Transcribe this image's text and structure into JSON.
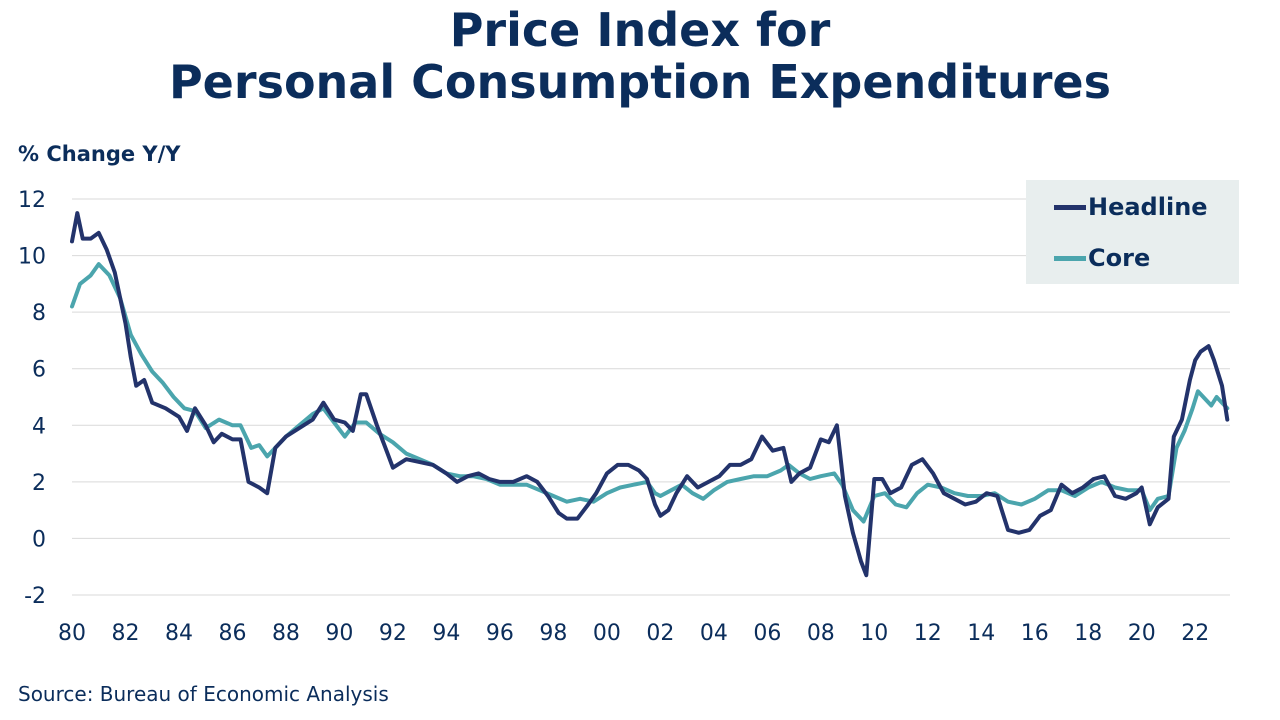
{
  "chart_data": {
    "type": "line",
    "title_line1": "Price Index for",
    "title_line2": "Personal Consumption Expenditures",
    "ylabel": "% Change Y/Y",
    "xlabel": "",
    "source": "Source: Bureau of Economic Analysis",
    "ylim": [
      -2,
      12
    ],
    "yticks": [
      -2,
      0,
      2,
      4,
      6,
      8,
      10,
      12
    ],
    "xlim": [
      1980.0,
      2023.3
    ],
    "xticks": [
      1980,
      1982,
      1984,
      1986,
      1988,
      1990,
      1992,
      1994,
      1996,
      1998,
      2000,
      2002,
      2004,
      2006,
      2008,
      2010,
      2012,
      2014,
      2016,
      2018,
      2020,
      2022
    ],
    "xtick_labels": [
      "80",
      "82",
      "84",
      "86",
      "88",
      "90",
      "92",
      "94",
      "96",
      "98",
      "00",
      "02",
      "04",
      "06",
      "08",
      "10",
      "12",
      "14",
      "16",
      "18",
      "20",
      "22"
    ],
    "grid": "horizontal",
    "legend_position": "top-right",
    "series": [
      {
        "name": "Headline",
        "color": "#23336b",
        "points": [
          [
            1980.0,
            10.5
          ],
          [
            1980.2,
            11.5
          ],
          [
            1980.4,
            10.6
          ],
          [
            1980.7,
            10.6
          ],
          [
            1981.0,
            10.8
          ],
          [
            1981.3,
            10.2
          ],
          [
            1981.6,
            9.4
          ],
          [
            1982.0,
            7.6
          ],
          [
            1982.2,
            6.4
          ],
          [
            1982.4,
            5.4
          ],
          [
            1982.7,
            5.6
          ],
          [
            1983.0,
            4.8
          ],
          [
            1983.5,
            4.6
          ],
          [
            1984.0,
            4.3
          ],
          [
            1984.3,
            3.8
          ],
          [
            1984.6,
            4.6
          ],
          [
            1985.0,
            4.0
          ],
          [
            1985.3,
            3.4
          ],
          [
            1985.6,
            3.7
          ],
          [
            1986.0,
            3.5
          ],
          [
            1986.3,
            3.5
          ],
          [
            1986.6,
            2.0
          ],
          [
            1987.0,
            1.8
          ],
          [
            1987.3,
            1.6
          ],
          [
            1987.6,
            3.2
          ],
          [
            1988.0,
            3.6
          ],
          [
            1988.5,
            3.9
          ],
          [
            1989.0,
            4.2
          ],
          [
            1989.4,
            4.8
          ],
          [
            1989.8,
            4.2
          ],
          [
            1990.2,
            4.1
          ],
          [
            1990.5,
            3.8
          ],
          [
            1990.8,
            5.1
          ],
          [
            1991.0,
            5.1
          ],
          [
            1991.4,
            4.0
          ],
          [
            1991.8,
            3.0
          ],
          [
            1992.0,
            2.5
          ],
          [
            1992.5,
            2.8
          ],
          [
            1993.0,
            2.7
          ],
          [
            1993.5,
            2.6
          ],
          [
            1994.0,
            2.3
          ],
          [
            1994.4,
            2.0
          ],
          [
            1994.8,
            2.2
          ],
          [
            1995.2,
            2.3
          ],
          [
            1995.6,
            2.1
          ],
          [
            1996.0,
            2.0
          ],
          [
            1996.5,
            2.0
          ],
          [
            1997.0,
            2.2
          ],
          [
            1997.4,
            2.0
          ],
          [
            1997.8,
            1.5
          ],
          [
            1998.2,
            0.9
          ],
          [
            1998.5,
            0.7
          ],
          [
            1998.9,
            0.7
          ],
          [
            1999.3,
            1.2
          ],
          [
            1999.6,
            1.6
          ],
          [
            2000.0,
            2.3
          ],
          [
            2000.4,
            2.6
          ],
          [
            2000.8,
            2.6
          ],
          [
            2001.2,
            2.4
          ],
          [
            2001.5,
            2.1
          ],
          [
            2001.8,
            1.2
          ],
          [
            2002.0,
            0.8
          ],
          [
            2002.3,
            1.0
          ],
          [
            2002.6,
            1.6
          ],
          [
            2003.0,
            2.2
          ],
          [
            2003.4,
            1.8
          ],
          [
            2003.8,
            2.0
          ],
          [
            2004.2,
            2.2
          ],
          [
            2004.6,
            2.6
          ],
          [
            2005.0,
            2.6
          ],
          [
            2005.4,
            2.8
          ],
          [
            2005.8,
            3.6
          ],
          [
            2006.2,
            3.1
          ],
          [
            2006.6,
            3.2
          ],
          [
            2006.9,
            2.0
          ],
          [
            2007.2,
            2.3
          ],
          [
            2007.6,
            2.5
          ],
          [
            2008.0,
            3.5
          ],
          [
            2008.3,
            3.4
          ],
          [
            2008.6,
            4.0
          ],
          [
            2008.9,
            1.5
          ],
          [
            2009.2,
            0.2
          ],
          [
            2009.5,
            -0.8
          ],
          [
            2009.7,
            -1.3
          ],
          [
            2010.0,
            2.1
          ],
          [
            2010.3,
            2.1
          ],
          [
            2010.6,
            1.6
          ],
          [
            2011.0,
            1.8
          ],
          [
            2011.4,
            2.6
          ],
          [
            2011.8,
            2.8
          ],
          [
            2012.2,
            2.3
          ],
          [
            2012.6,
            1.6
          ],
          [
            2013.0,
            1.4
          ],
          [
            2013.4,
            1.2
          ],
          [
            2013.8,
            1.3
          ],
          [
            2014.2,
            1.6
          ],
          [
            2014.6,
            1.5
          ],
          [
            2015.0,
            0.3
          ],
          [
            2015.4,
            0.2
          ],
          [
            2015.8,
            0.3
          ],
          [
            2016.2,
            0.8
          ],
          [
            2016.6,
            1.0
          ],
          [
            2017.0,
            1.9
          ],
          [
            2017.4,
            1.6
          ],
          [
            2017.8,
            1.8
          ],
          [
            2018.2,
            2.1
          ],
          [
            2018.6,
            2.2
          ],
          [
            2019.0,
            1.5
          ],
          [
            2019.4,
            1.4
          ],
          [
            2019.8,
            1.6
          ],
          [
            2020.0,
            1.8
          ],
          [
            2020.3,
            0.5
          ],
          [
            2020.6,
            1.1
          ],
          [
            2021.0,
            1.4
          ],
          [
            2021.2,
            3.6
          ],
          [
            2021.5,
            4.2
          ],
          [
            2021.8,
            5.6
          ],
          [
            2022.0,
            6.3
          ],
          [
            2022.2,
            6.6
          ],
          [
            2022.5,
            6.8
          ],
          [
            2022.7,
            6.3
          ],
          [
            2023.0,
            5.4
          ],
          [
            2023.2,
            4.2
          ]
        ]
      },
      {
        "name": "Core",
        "color": "#4ba5ad",
        "points": [
          [
            1980.0,
            8.2
          ],
          [
            1980.3,
            9.0
          ],
          [
            1980.7,
            9.3
          ],
          [
            1981.0,
            9.7
          ],
          [
            1981.4,
            9.3
          ],
          [
            1981.8,
            8.5
          ],
          [
            1982.2,
            7.2
          ],
          [
            1982.6,
            6.5
          ],
          [
            1983.0,
            5.9
          ],
          [
            1983.4,
            5.5
          ],
          [
            1983.8,
            5.0
          ],
          [
            1984.2,
            4.6
          ],
          [
            1984.6,
            4.5
          ],
          [
            1985.0,
            3.9
          ],
          [
            1985.5,
            4.2
          ],
          [
            1986.0,
            4.0
          ],
          [
            1986.3,
            4.0
          ],
          [
            1986.7,
            3.2
          ],
          [
            1987.0,
            3.3
          ],
          [
            1987.3,
            2.9
          ],
          [
            1987.7,
            3.3
          ],
          [
            1988.0,
            3.6
          ],
          [
            1988.5,
            4.0
          ],
          [
            1989.0,
            4.4
          ],
          [
            1989.4,
            4.6
          ],
          [
            1989.8,
            4.1
          ],
          [
            1990.2,
            3.6
          ],
          [
            1990.6,
            4.1
          ],
          [
            1991.0,
            4.1
          ],
          [
            1991.5,
            3.7
          ],
          [
            1992.0,
            3.4
          ],
          [
            1992.5,
            3.0
          ],
          [
            1993.0,
            2.8
          ],
          [
            1993.5,
            2.6
          ],
          [
            1994.0,
            2.3
          ],
          [
            1994.5,
            2.2
          ],
          [
            1995.0,
            2.2
          ],
          [
            1995.5,
            2.1
          ],
          [
            1996.0,
            1.9
          ],
          [
            1996.5,
            1.9
          ],
          [
            1997.0,
            1.9
          ],
          [
            1997.5,
            1.7
          ],
          [
            1998.0,
            1.5
          ],
          [
            1998.5,
            1.3
          ],
          [
            1999.0,
            1.4
          ],
          [
            1999.5,
            1.3
          ],
          [
            2000.0,
            1.6
          ],
          [
            2000.5,
            1.8
          ],
          [
            2001.0,
            1.9
          ],
          [
            2001.5,
            2.0
          ],
          [
            2001.8,
            1.6
          ],
          [
            2002.0,
            1.5
          ],
          [
            2002.4,
            1.7
          ],
          [
            2002.8,
            1.9
          ],
          [
            2003.2,
            1.6
          ],
          [
            2003.6,
            1.4
          ],
          [
            2004.0,
            1.7
          ],
          [
            2004.5,
            2.0
          ],
          [
            2005.0,
            2.1
          ],
          [
            2005.5,
            2.2
          ],
          [
            2006.0,
            2.2
          ],
          [
            2006.5,
            2.4
          ],
          [
            2006.8,
            2.6
          ],
          [
            2007.2,
            2.3
          ],
          [
            2007.6,
            2.1
          ],
          [
            2008.0,
            2.2
          ],
          [
            2008.5,
            2.3
          ],
          [
            2008.8,
            1.9
          ],
          [
            2009.2,
            1.0
          ],
          [
            2009.6,
            0.6
          ],
          [
            2010.0,
            1.5
          ],
          [
            2010.4,
            1.6
          ],
          [
            2010.8,
            1.2
          ],
          [
            2011.2,
            1.1
          ],
          [
            2011.6,
            1.6
          ],
          [
            2012.0,
            1.9
          ],
          [
            2012.5,
            1.8
          ],
          [
            2013.0,
            1.6
          ],
          [
            2013.5,
            1.5
          ],
          [
            2014.0,
            1.5
          ],
          [
            2014.5,
            1.6
          ],
          [
            2015.0,
            1.3
          ],
          [
            2015.5,
            1.2
          ],
          [
            2016.0,
            1.4
          ],
          [
            2016.5,
            1.7
          ],
          [
            2017.0,
            1.7
          ],
          [
            2017.5,
            1.5
          ],
          [
            2018.0,
            1.8
          ],
          [
            2018.5,
            2.0
          ],
          [
            2019.0,
            1.8
          ],
          [
            2019.5,
            1.7
          ],
          [
            2020.0,
            1.7
          ],
          [
            2020.3,
            1.0
          ],
          [
            2020.6,
            1.4
          ],
          [
            2021.0,
            1.5
          ],
          [
            2021.3,
            3.2
          ],
          [
            2021.6,
            3.8
          ],
          [
            2021.9,
            4.6
          ],
          [
            2022.1,
            5.2
          ],
          [
            2022.3,
            5.0
          ],
          [
            2022.6,
            4.7
          ],
          [
            2022.8,
            5.0
          ],
          [
            2023.0,
            4.8
          ],
          [
            2023.2,
            4.6
          ]
        ]
      }
    ]
  }
}
